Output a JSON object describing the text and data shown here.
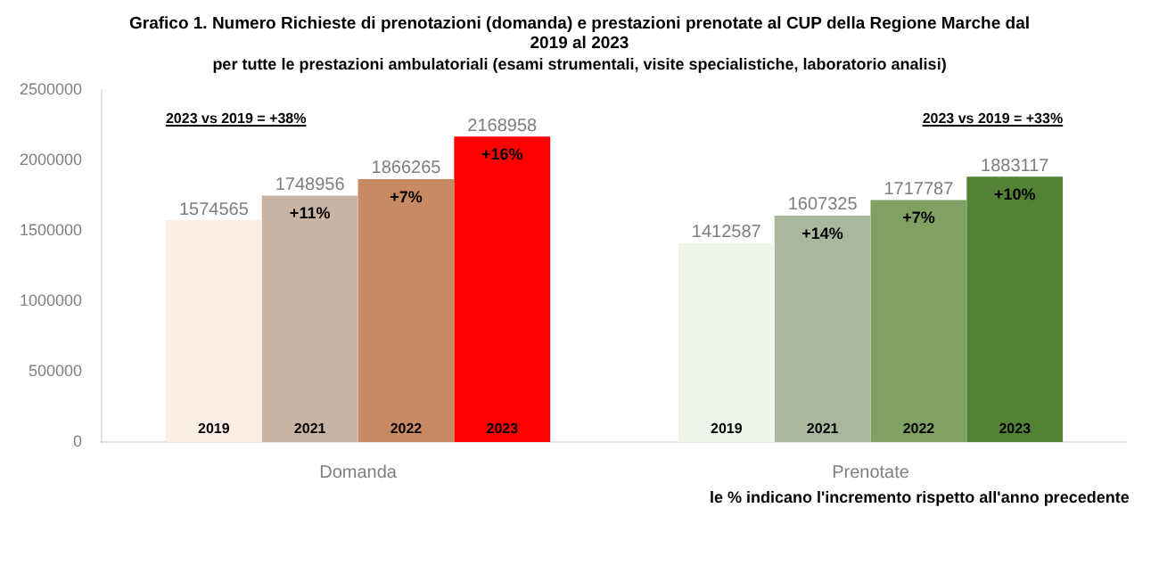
{
  "chart_data": {
    "type": "bar",
    "title": "Grafico 1. Numero Richieste di prenotazioni (domanda) e prestazioni prenotate al CUP della Regione Marche dal 2019 al 2023",
    "subtitle": "per tutte le prestazioni ambulatoriali (esami strumentali, visite specialistiche, laboratorio analisi)",
    "categories": [
      "Domanda",
      "Prenotate"
    ],
    "series": [
      {
        "name": "2019",
        "colors": [
          "#fbeee4",
          "#eef5e8"
        ],
        "values": [
          1574565,
          1412587
        ]
      },
      {
        "name": "2021",
        "colors": [
          "#c9b4a4",
          "#a9b89c"
        ],
        "values": [
          1748956,
          1607325
        ]
      },
      {
        "name": "2022",
        "colors": [
          "#c88a62",
          "#7fa164"
        ],
        "values": [
          1866265,
          1717787
        ]
      },
      {
        "name": "2023",
        "colors": [
          "#ff0000",
          "#548235"
        ],
        "values": [
          2168958,
          1883117
        ]
      }
    ],
    "ylim": [
      0,
      2500000
    ],
    "yticks": [
      0,
      500000,
      1000000,
      1500000,
      2000000,
      2500000
    ],
    "grid": false,
    "legend": false,
    "data_labels": true,
    "annotations": [
      "2023 vs 2019 = +38%",
      "2023 vs 2019 = +33%",
      "+11%",
      "+14%",
      "+7%",
      "+7%",
      "+16%",
      "+10%",
      "le % indicano l'incremento rispetto all'anno precedente"
    ]
  }
}
